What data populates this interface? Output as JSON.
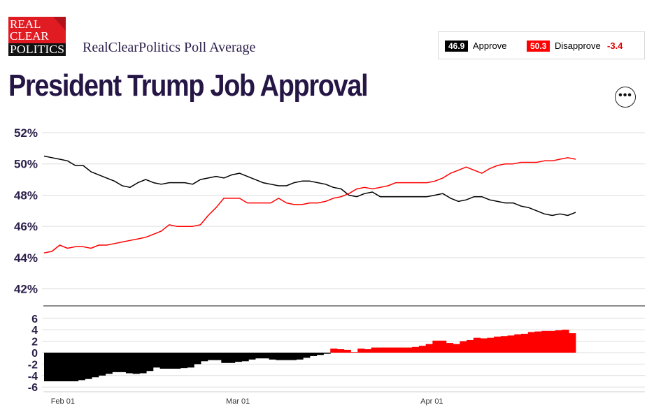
{
  "header": {
    "logo_lines": [
      "REAL",
      "CLEAR",
      "POLITICS"
    ],
    "subtitle": "RealClearPolitics Poll Average",
    "title": "President Trump Job Approval",
    "more_icon": "ellipsis-icon",
    "more_symbol": "•••"
  },
  "legend": {
    "approve_value": "46.9",
    "approve_label": "Approve",
    "approve_color": "#000000",
    "disapprove_value": "50.3",
    "disapprove_label": "Disapprove",
    "disapprove_color": "#ff0000",
    "net": "-3.4",
    "net_color": "#e00000"
  },
  "chart_data": [
    {
      "type": "line",
      "ylim": [
        41,
        52
      ],
      "yticks": [
        42,
        44,
        46,
        48,
        50,
        52
      ],
      "ytick_labels": [
        "42%",
        "44%",
        "46%",
        "48%",
        "50%",
        "52%"
      ],
      "grid": true,
      "series": [
        {
          "key": "approve",
          "color": "#000000",
          "values": [
            50.5,
            50.4,
            50.3,
            50.2,
            49.9,
            49.9,
            49.5,
            49.3,
            49.1,
            48.9,
            48.6,
            48.5,
            48.8,
            49.0,
            48.8,
            48.7,
            48.8,
            48.8,
            48.8,
            48.7,
            49.0,
            49.1,
            49.2,
            49.1,
            49.3,
            49.4,
            49.2,
            49.0,
            48.8,
            48.7,
            48.6,
            48.6,
            48.8,
            48.9,
            48.9,
            48.8,
            48.7,
            48.5,
            48.4,
            48.0,
            47.9,
            48.1,
            48.2,
            47.9,
            47.9,
            47.9,
            47.9,
            47.9,
            47.9,
            47.9,
            48.0,
            48.1,
            47.8,
            47.6,
            47.7,
            47.9,
            47.9,
            47.7,
            47.6,
            47.5,
            47.5,
            47.3,
            47.2,
            47.0,
            46.8,
            46.7,
            46.8,
            46.7,
            46.9
          ]
        },
        {
          "key": "disapprove",
          "color": "#ff0000",
          "values": [
            44.3,
            44.4,
            44.8,
            44.6,
            44.7,
            44.7,
            44.6,
            44.8,
            44.8,
            44.9,
            45.0,
            45.1,
            45.2,
            45.3,
            45.5,
            45.7,
            46.1,
            46.0,
            46.0,
            46.0,
            46.1,
            46.7,
            47.2,
            47.8,
            47.8,
            47.8,
            47.5,
            47.5,
            47.5,
            47.5,
            47.8,
            47.5,
            47.4,
            47.4,
            47.5,
            47.5,
            47.6,
            47.8,
            47.9,
            48.1,
            48.4,
            48.5,
            48.4,
            48.5,
            48.6,
            48.8,
            48.8,
            48.8,
            48.8,
            48.8,
            48.9,
            49.1,
            49.4,
            49.6,
            49.8,
            49.6,
            49.4,
            49.7,
            49.9,
            50.0,
            50.0,
            50.1,
            50.1,
            50.1,
            50.2,
            50.2,
            50.3,
            50.4,
            50.3
          ]
        }
      ]
    },
    {
      "type": "bar",
      "ylim": [
        -6.5,
        7
      ],
      "yticks": [
        -6,
        -4,
        -2,
        0,
        2,
        4,
        6
      ],
      "ytick_labels": [
        "-6",
        "-4",
        "-2",
        "0",
        "2",
        "4",
        "6"
      ],
      "grid": true,
      "positive_color": "#ff0000",
      "negative_color": "#000000",
      "values": [
        -5.0,
        -5.0,
        -5.0,
        -5.0,
        -5.0,
        -4.8,
        -4.6,
        -4.3,
        -4.0,
        -3.7,
        -3.4,
        -3.4,
        -3.6,
        -3.7,
        -3.6,
        -3.2,
        -2.6,
        -2.8,
        -2.8,
        -2.8,
        -2.7,
        -2.6,
        -2.0,
        -1.5,
        -1.3,
        -1.3,
        -1.8,
        -1.8,
        -1.6,
        -1.5,
        -1.2,
        -1.0,
        -1.0,
        -1.2,
        -1.3,
        -1.3,
        -1.3,
        -1.2,
        -0.9,
        -0.6,
        -0.4,
        -0.2,
        0.7,
        0.6,
        0.5,
        0.0,
        0.7,
        0.6,
        0.9,
        0.9,
        0.9,
        0.9,
        0.9,
        0.9,
        1.0,
        1.2,
        1.5,
        2.1,
        2.1,
        1.7,
        1.5,
        2.0,
        2.2,
        2.6,
        2.5,
        2.6,
        2.8,
        2.9,
        3.0,
        3.2,
        3.3,
        3.6,
        3.7,
        3.8,
        3.8,
        3.9,
        4.0,
        3.4
      ]
    }
  ],
  "x_axis": {
    "tick_labels": [
      "Feb 01",
      "Mar 01",
      "Apr 01"
    ],
    "tick_dates": [
      "2025-02-01",
      "2025-03-01",
      "2025-04-01"
    ]
  }
}
